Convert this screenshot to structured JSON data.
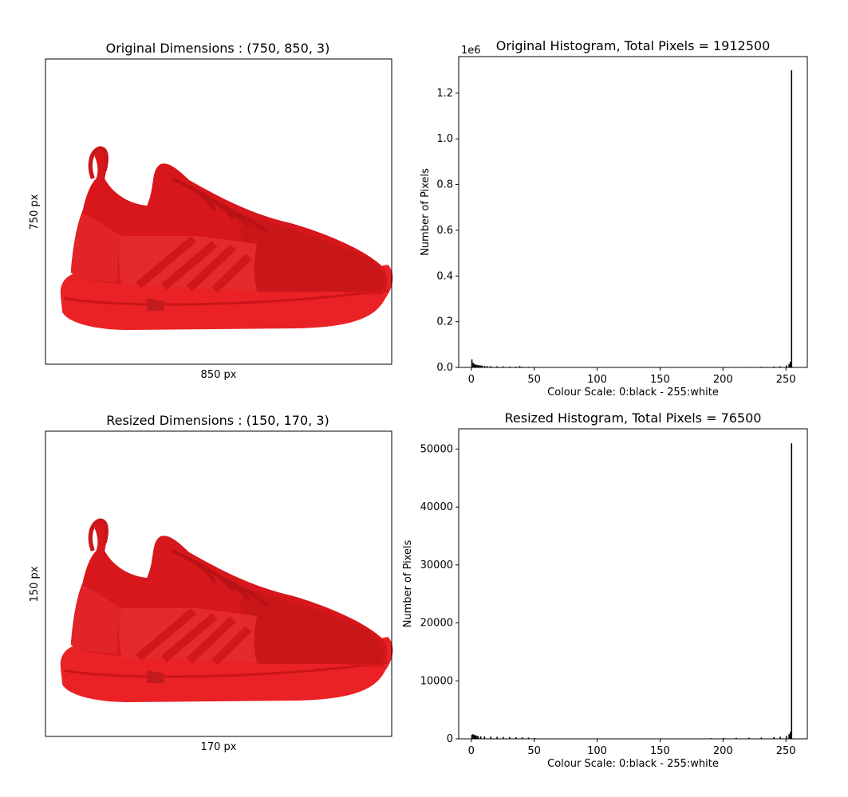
{
  "figure": {
    "panels": {
      "orig_img": {
        "title": "Original Dimensions : (750, 850, 3)",
        "xlabel": "850 px",
        "ylabel": "750 px",
        "image": "red-sneaker-photo"
      },
      "resized_img": {
        "title": "Resized Dimensions : (150, 170, 3)",
        "xlabel": "170 px",
        "ylabel": "150 px",
        "image": "red-sneaker-photo-pixelated"
      }
    }
  },
  "chart_data": [
    {
      "type": "bar",
      "title": "Original Histogram, Total Pixels = 1912500",
      "xlabel": "Colour Scale: 0:black - 255:white",
      "ylabel": "Number of Pixels",
      "offset_text": "1e6",
      "xlim": [
        -10,
        267
      ],
      "ylim": [
        0,
        1360000
      ],
      "xticks": [
        0,
        50,
        100,
        150,
        200,
        250
      ],
      "yticks": [
        0,
        200000,
        400000,
        600000,
        800000,
        1000000,
        1200000
      ],
      "ytick_labels": [
        "0.0",
        "0.2",
        "0.4",
        "0.6",
        "0.8",
        "1.0",
        "1.2"
      ],
      "bar_color": "#000000",
      "bins": [
        {
          "x": 0,
          "y": 35000
        },
        {
          "x": 1,
          "y": 20000
        },
        {
          "x": 2,
          "y": 15000
        },
        {
          "x": 3,
          "y": 12000
        },
        {
          "x": 4,
          "y": 11000
        },
        {
          "x": 5,
          "y": 10000
        },
        {
          "x": 6,
          "y": 9000
        },
        {
          "x": 7,
          "y": 8500
        },
        {
          "x": 8,
          "y": 8000
        },
        {
          "x": 10,
          "y": 7000
        },
        {
          "x": 12,
          "y": 6500
        },
        {
          "x": 15,
          "y": 6000
        },
        {
          "x": 20,
          "y": 5000
        },
        {
          "x": 25,
          "y": 4500
        },
        {
          "x": 30,
          "y": 4000
        },
        {
          "x": 35,
          "y": 3500
        },
        {
          "x": 38,
          "y": 6000
        },
        {
          "x": 40,
          "y": 3000
        },
        {
          "x": 45,
          "y": 2500
        },
        {
          "x": 50,
          "y": 1500
        },
        {
          "x": 212,
          "y": 1500
        },
        {
          "x": 220,
          "y": 2000
        },
        {
          "x": 230,
          "y": 3000
        },
        {
          "x": 240,
          "y": 4000
        },
        {
          "x": 245,
          "y": 5000
        },
        {
          "x": 250,
          "y": 9000
        },
        {
          "x": 252,
          "y": 15000
        },
        {
          "x": 253,
          "y": 25000
        },
        {
          "x": 254,
          "y": 1300000
        }
      ]
    },
    {
      "type": "bar",
      "title": "Resized Histogram, Total Pixels = 76500",
      "xlabel": "Colour Scale: 0:black - 255:white",
      "ylabel": "Number of Pixels",
      "xlim": [
        -10,
        267
      ],
      "ylim": [
        0,
        53500
      ],
      "xticks": [
        0,
        50,
        100,
        150,
        200,
        250
      ],
      "yticks": [
        0,
        10000,
        20000,
        30000,
        40000,
        50000
      ],
      "ytick_labels": [
        "0",
        "10000",
        "20000",
        "30000",
        "40000",
        "50000"
      ],
      "bar_color": "#000000",
      "bins": [
        {
          "x": 0,
          "y": 700
        },
        {
          "x": 1,
          "y": 800
        },
        {
          "x": 2,
          "y": 650
        },
        {
          "x": 3,
          "y": 600
        },
        {
          "x": 4,
          "y": 500
        },
        {
          "x": 5,
          "y": 450
        },
        {
          "x": 7,
          "y": 420
        },
        {
          "x": 10,
          "y": 400
        },
        {
          "x": 15,
          "y": 380
        },
        {
          "x": 20,
          "y": 350
        },
        {
          "x": 25,
          "y": 320
        },
        {
          "x": 30,
          "y": 300
        },
        {
          "x": 35,
          "y": 280
        },
        {
          "x": 40,
          "y": 260
        },
        {
          "x": 45,
          "y": 220
        },
        {
          "x": 50,
          "y": 150
        },
        {
          "x": 60,
          "y": 80
        },
        {
          "x": 190,
          "y": 120
        },
        {
          "x": 200,
          "y": 150
        },
        {
          "x": 210,
          "y": 180
        },
        {
          "x": 220,
          "y": 200
        },
        {
          "x": 230,
          "y": 220
        },
        {
          "x": 240,
          "y": 300
        },
        {
          "x": 245,
          "y": 350
        },
        {
          "x": 250,
          "y": 500
        },
        {
          "x": 252,
          "y": 800
        },
        {
          "x": 253,
          "y": 1200
        },
        {
          "x": 254,
          "y": 51000
        }
      ]
    }
  ]
}
